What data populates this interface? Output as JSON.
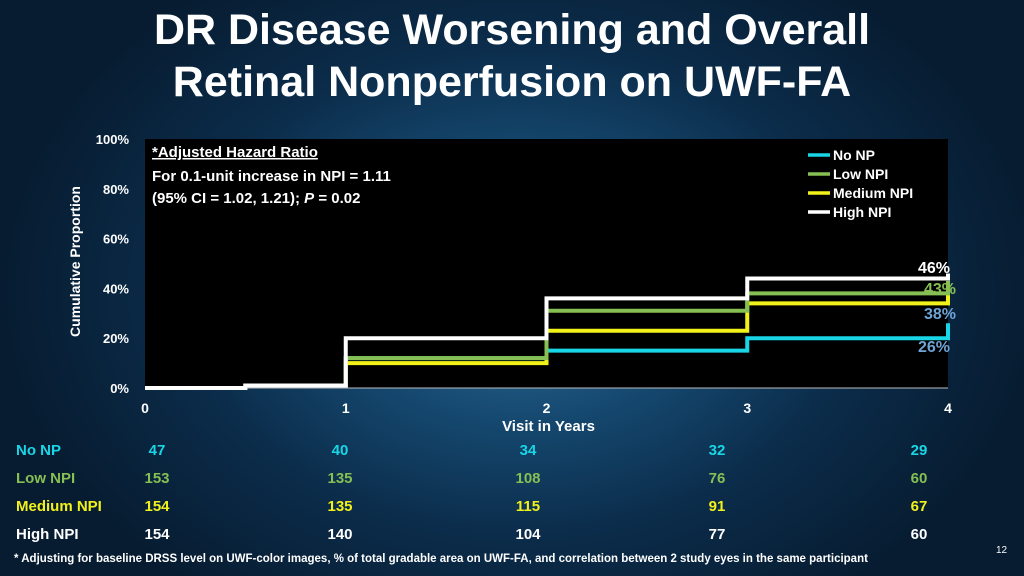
{
  "title_line1": "DR Disease Worsening and Overall",
  "title_line2": "Retinal Nonperfusion on UWF-FA",
  "chart_data": {
    "type": "line",
    "step": true,
    "xlabel": "Visit in Years",
    "ylabel": "Cumulative Proportion",
    "xlim": [
      0,
      4
    ],
    "ylim": [
      0,
      1
    ],
    "x_ticks": [
      "0",
      "1",
      "2",
      "3",
      "4"
    ],
    "y_ticks": [
      "0%",
      "20%",
      "40%",
      "60%",
      "80%",
      "100%"
    ],
    "legend_position": "top-right",
    "series": [
      {
        "name": "No NP",
        "color": "#19d6e6",
        "x": [
          0,
          0.5,
          1,
          2,
          3,
          4
        ],
        "values": [
          0,
          0.01,
          0.12,
          0.15,
          0.2,
          0.26
        ],
        "end_label": "26%",
        "end_label_color": "#6fa4d6"
      },
      {
        "name": "Low NPI",
        "color": "#86bf53",
        "x": [
          0,
          0.5,
          1,
          2,
          3,
          4
        ],
        "values": [
          0,
          0.01,
          0.12,
          0.31,
          0.38,
          0.43
        ],
        "end_label": "43%",
        "end_label_color": "#86bf53"
      },
      {
        "name": "Medium NPI",
        "color": "#f2f21a",
        "x": [
          0,
          0.5,
          1,
          2,
          3,
          4
        ],
        "values": [
          0,
          0.01,
          0.1,
          0.23,
          0.34,
          0.38
        ],
        "end_label": "38%",
        "end_label_color": "#6fa4d6"
      },
      {
        "name": "High NPI",
        "color": "#ffffff",
        "x": [
          0,
          0.5,
          1,
          2,
          3,
          4
        ],
        "values": [
          0,
          0.01,
          0.2,
          0.36,
          0.44,
          0.46
        ],
        "end_label": "46%",
        "end_label_color": "#ffffff"
      }
    ],
    "annotation": {
      "line1": "*Adjusted Hazard Ratio",
      "line2": "For 0.1-unit increase in NPI = 1.11",
      "line3_a": "(95% CI = 1.02, 1.21); ",
      "line3_p": "P",
      "line3_b": " = 0.02"
    }
  },
  "risk_table": {
    "rows": [
      {
        "label": "No NP",
        "color": "#19d6e6",
        "values": [
          "47",
          "40",
          "34",
          "32",
          "29"
        ]
      },
      {
        "label": "Low NPI",
        "color": "#86bf53",
        "values": [
          "153",
          "135",
          "108",
          "76",
          "60"
        ]
      },
      {
        "label": "Medium NPI",
        "color": "#f2f21a",
        "values": [
          "154",
          "135",
          "115",
          "91",
          "67"
        ]
      },
      {
        "label": "High NPI",
        "color": "#ffffff",
        "values": [
          "154",
          "140",
          "104",
          "77",
          "60"
        ]
      }
    ]
  },
  "footnote": "* Adjusting for baseline DRSS level on UWF-color images, % of total gradable area on UWF-FA, and correlation between 2 study eyes in the same participant",
  "page_number": "12"
}
